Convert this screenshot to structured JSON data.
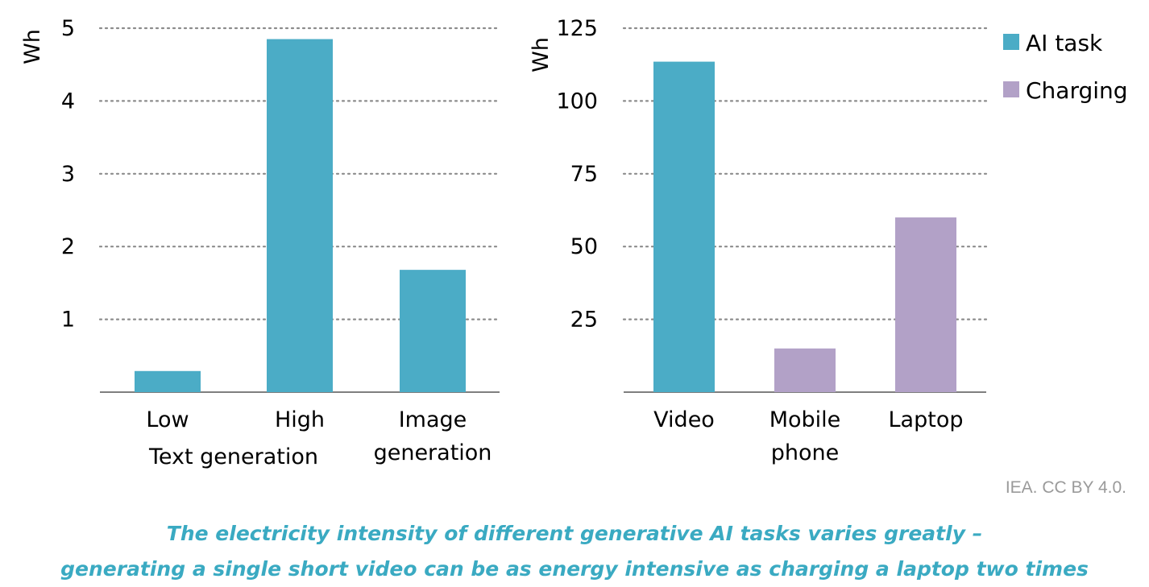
{
  "chart_data": [
    {
      "type": "bar",
      "ylabel": "Wh",
      "ylim": [
        0,
        5
      ],
      "yticks": [
        "1",
        "2",
        "3",
        "4",
        "5"
      ],
      "grid": true,
      "categories": [
        "Low",
        "High",
        "Image generation"
      ],
      "category_lines": [
        [
          "Low"
        ],
        [
          "High"
        ],
        [
          "Image",
          "generation"
        ]
      ],
      "group_label": "Text generation",
      "series": [
        {
          "name": "AI task",
          "values": [
            0.29,
            4.85,
            1.68
          ],
          "color": "#4bacc6"
        }
      ]
    },
    {
      "type": "bar",
      "ylabel": "Wh",
      "ylim": [
        0,
        125
      ],
      "yticks": [
        "25",
        "50",
        "75",
        "100",
        "125"
      ],
      "grid": true,
      "categories": [
        "Video",
        "Mobile phone",
        "Laptop"
      ],
      "category_lines": [
        [
          "Video"
        ],
        [
          "Mobile",
          "phone"
        ],
        [
          "Laptop"
        ]
      ],
      "legend_position": "top-right",
      "series": [
        {
          "name": "AI task",
          "values": [
            113.5,
            null,
            null
          ],
          "color": "#4bacc6"
        },
        {
          "name": "Charging",
          "values": [
            null,
            15,
            60
          ],
          "color": "#b2a1c7"
        }
      ]
    }
  ],
  "legend": [
    {
      "label": "AI task",
      "color": "#4bacc6"
    },
    {
      "label": "Charging",
      "color": "#b2a1c7"
    }
  ],
  "source": "IEA. CC BY 4.0.",
  "caption": {
    "line1": "The electricity intensity of different generative AI tasks varies greatly –",
    "line2": "generating a single short video can be as energy intensive as charging a laptop two times"
  }
}
